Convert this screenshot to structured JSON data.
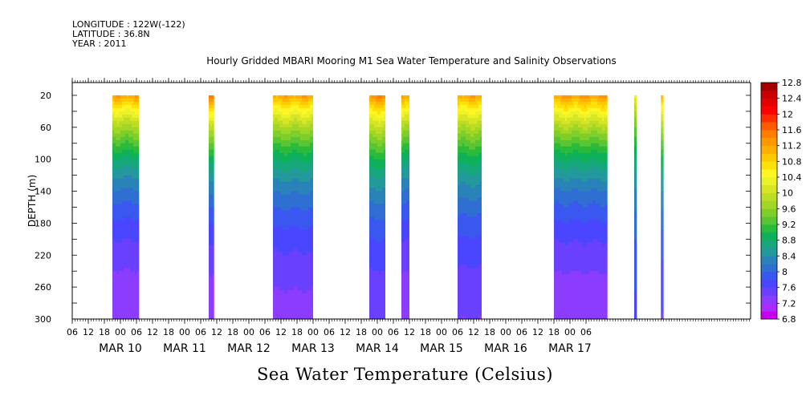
{
  "header": {
    "longitude": "LONGITUDE : 122W(-122)",
    "latitude": "LATITUDE : 36.8N",
    "year": "YEAR : 2011"
  },
  "chart_data": {
    "type": "heatmap",
    "title": "Hourly Gridded MBARI Mooring M1 Sea Water Temperature and Salinity Observations",
    "colorbar_title": "Sea Water Temperature (Celsius)",
    "ylabel": "DEPTH (m)",
    "y_ticks": [
      20,
      60,
      100,
      140,
      180,
      220,
      260,
      300
    ],
    "ylim": [
      300,
      4
    ],
    "x_hour_labels": [
      "06",
      "12",
      "18",
      "00",
      "06",
      "12",
      "18",
      "00",
      "06",
      "12",
      "18",
      "00",
      "06",
      "12",
      "18",
      "00",
      "06",
      "12",
      "18",
      "00",
      "06",
      "12",
      "18",
      "00",
      "06",
      "12",
      "18",
      "00",
      "06",
      "12",
      "18",
      "00",
      "06"
    ],
    "x_date_labels": [
      {
        "label": "MAR 10",
        "day": 0
      },
      {
        "label": "MAR 11",
        "day": 1
      },
      {
        "label": "MAR 12",
        "day": 2
      },
      {
        "label": "MAR 13",
        "day": 3
      },
      {
        "label": "MAR 14",
        "day": 4
      },
      {
        "label": "MAR 15",
        "day": 5
      },
      {
        "label": "MAR 16",
        "day": 6
      },
      {
        "label": "MAR 17",
        "day": 7
      }
    ],
    "colorbar_levels": [
      6.8,
      7.0,
      7.2,
      7.4,
      7.6,
      7.8,
      8.0,
      8.2,
      8.4,
      8.6,
      8.8,
      9.0,
      9.2,
      9.4,
      9.6,
      9.8,
      10.0,
      10.2,
      10.4,
      10.6,
      10.8,
      11.0,
      11.2,
      11.4,
      11.6,
      11.8,
      12.0,
      12.2,
      12.4,
      12.6,
      12.8
    ],
    "colorbar_labels": [
      "12.8",
      "12.4",
      "12",
      "11.6",
      "11.2",
      "10.8",
      "10.4",
      "10",
      "9.6",
      "9.2",
      "8.8",
      "8.4",
      "8",
      "7.6",
      "7.2",
      "6.8"
    ],
    "colors": [
      "#c800f0",
      "#aa2bff",
      "#8c3cff",
      "#6a40ff",
      "#4a46ff",
      "#3a58ef",
      "#2f6fd2",
      "#2a83b8",
      "#23999c",
      "#16a87c",
      "#0fb05a",
      "#2bbb3c",
      "#59c532",
      "#7ecf2a",
      "#a0d626",
      "#bcdd25",
      "#d6e524",
      "#eaf22a",
      "#fff624",
      "#ffe10a",
      "#ffc900",
      "#ffb000",
      "#ff9800",
      "#ff7d00",
      "#ff5a00",
      "#ff2d00",
      "#ff0000",
      "#e50000",
      "#c80000",
      "#a50000"
    ],
    "segments": [
      {
        "start_hour": 21,
        "end_hour": 31,
        "surface": 11.2,
        "bottom": 7.0
      },
      {
        "start_hour": 57,
        "end_hour": 59,
        "surface": 11.4,
        "bottom": 7.0
      },
      {
        "start_hour": 81,
        "end_hour": 96,
        "surface": 11.2,
        "bottom": 7.1
      },
      {
        "start_hour": 117,
        "end_hour": 123,
        "surface": 11.4,
        "bottom": 7.2
      },
      {
        "start_hour": 129,
        "end_hour": 132,
        "surface": 11.3,
        "bottom": 7.0
      },
      {
        "start_hour": 150,
        "end_hour": 159,
        "surface": 11.2,
        "bottom": 7.2
      },
      {
        "start_hour": 186,
        "end_hour": 206,
        "surface": 11.3,
        "bottom": 7.0
      },
      {
        "start_hour": 216,
        "end_hour": 217,
        "surface": 10.4,
        "bottom": 7.6
      },
      {
        "start_hour": 226,
        "end_hour": 227,
        "surface": 11.0,
        "bottom": 7.4
      }
    ]
  }
}
